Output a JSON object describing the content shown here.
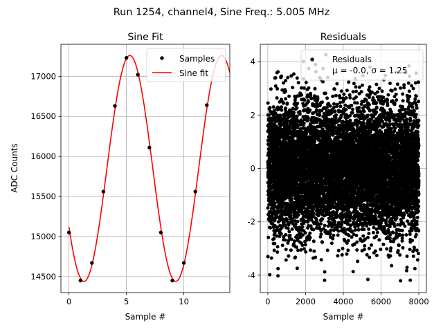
{
  "figure": {
    "suptitle": "Run 1254, channel4, Sine Freq.: 5.005 MHz"
  },
  "chart_data": [
    {
      "type": "line",
      "title": "Sine Fit",
      "xlabel": "Sample #",
      "ylabel": "ADC Counts",
      "xlim": [
        -0.7,
        14
      ],
      "ylim": [
        14300,
        17400
      ],
      "xticks": [
        0,
        5,
        10
      ],
      "yticks": [
        14500,
        15000,
        15500,
        16000,
        16500,
        17000
      ],
      "grid": true,
      "legend": {
        "location": "upper right",
        "entries": [
          "Samples",
          "Sine fit"
        ]
      },
      "series": [
        {
          "name": "Samples",
          "marker": "dot",
          "color": "#000000",
          "x": [
            0,
            1,
            2,
            3,
            4,
            5,
            6,
            7,
            8,
            9,
            10,
            11,
            12
          ],
          "y": [
            15050,
            14450,
            14670,
            15560,
            16630,
            17230,
            17020,
            16110,
            15050,
            14450,
            14670,
            15560,
            16640
          ]
        },
        {
          "name": "Sine fit",
          "style": "line",
          "color": "#ff0000",
          "function": {
            "offset": 15850,
            "amplitude": 1410,
            "period": 7.99,
            "peak_at": 5.3
          },
          "x_range": [
            0,
            14
          ]
        }
      ]
    },
    {
      "type": "scatter",
      "title": "Residuals",
      "xlabel": "Sample #",
      "ylabel": "",
      "xlim": [
        -400,
        8400
      ],
      "ylim": [
        -4.65,
        4.65
      ],
      "xticks": [
        0,
        2000,
        4000,
        6000,
        8000
      ],
      "yticks": [
        -4,
        -2,
        0,
        2,
        4
      ],
      "grid": true,
      "legend": {
        "location": "upper right",
        "entries": [
          "Residuals",
          "μ = -0.0, σ = 1.25"
        ]
      },
      "series": [
        {
          "name": "Residuals",
          "color": "#000000",
          "distribution": {
            "n_points": 8000,
            "x_range": [
              0,
              8000
            ],
            "mean": -0.0,
            "std": 1.25
          }
        }
      ]
    }
  ]
}
